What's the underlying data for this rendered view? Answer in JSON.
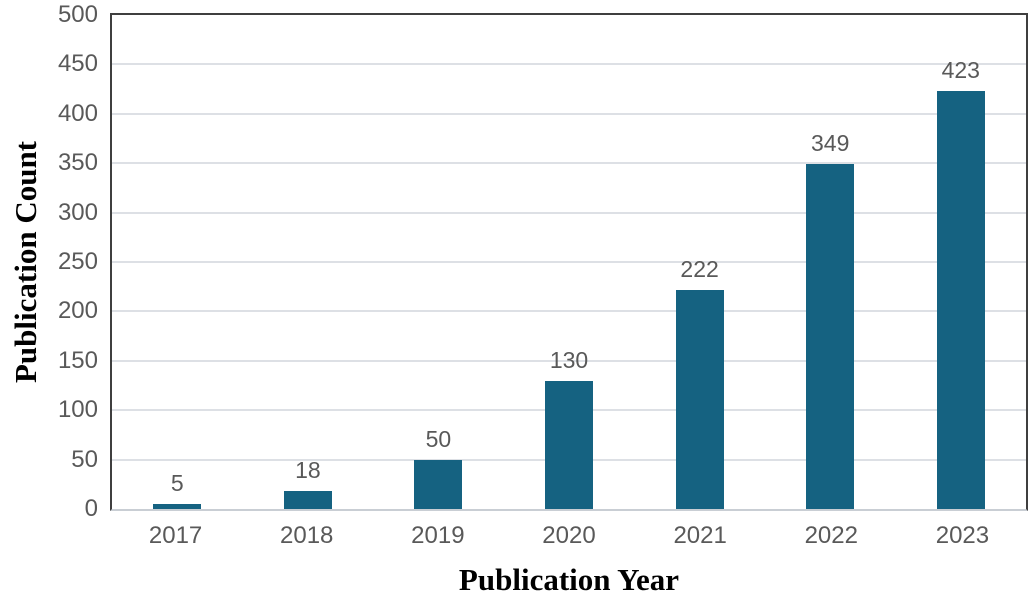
{
  "chart_data": {
    "type": "bar",
    "title": "",
    "categories": [
      "2017",
      "2018",
      "2019",
      "2020",
      "2021",
      "2022",
      "2023"
    ],
    "values": [
      5,
      18,
      50,
      130,
      222,
      349,
      423
    ],
    "data_labels": [
      "5",
      "18",
      "50",
      "130",
      "222",
      "349",
      "423"
    ],
    "xlabel": "Publication Year",
    "ylabel": "Publication Count",
    "ylim": [
      0,
      500
    ],
    "ytick_step": 50,
    "ytick_labels": [
      "0",
      "50",
      "100",
      "150",
      "200",
      "250",
      "300",
      "350",
      "400",
      "450",
      "500"
    ],
    "grid": "horizontal",
    "legend": "none"
  },
  "colors": {
    "bar": "#156281",
    "gridline": "#dde0e5",
    "plot_border": "#3f3f3f",
    "baseline": "#c9ced4",
    "tick_label": "#595959",
    "data_label": "#595959",
    "axis_title": "#000000",
    "background": "#ffffff"
  }
}
